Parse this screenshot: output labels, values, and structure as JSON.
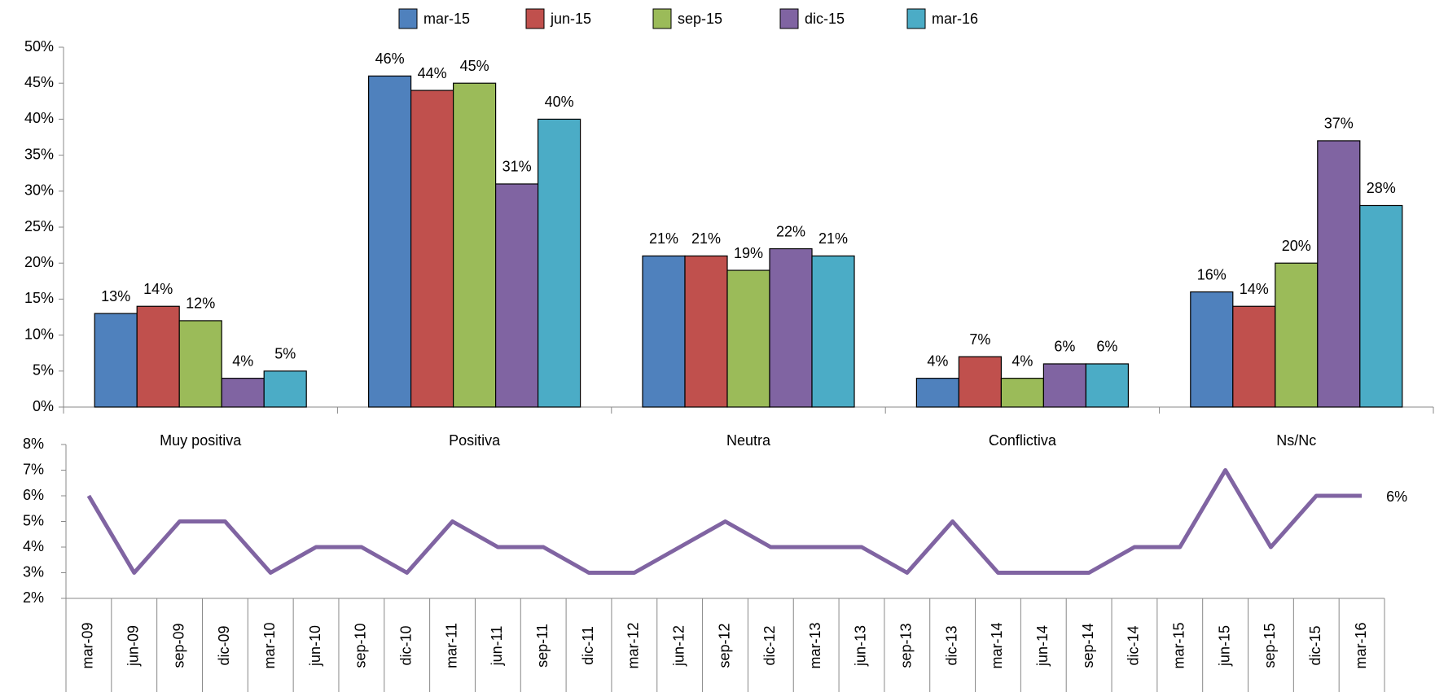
{
  "chart_data": [
    {
      "type": "bar",
      "categories": [
        "Muy positiva",
        "Positiva",
        "Neutra",
        "Conflictiva",
        "Ns/Nc"
      ],
      "series": [
        {
          "name": "mar-15",
          "color": "#4f81bd",
          "values": [
            13,
            46,
            21,
            4,
            16
          ],
          "value_labels": [
            "13%",
            "46%",
            "21%",
            "4%",
            "16%"
          ]
        },
        {
          "name": "jun-15",
          "color": "#c0504d",
          "values": [
            14,
            44,
            21,
            7,
            14
          ],
          "value_labels": [
            "14%",
            "44%",
            "21%",
            "7%",
            "14%"
          ]
        },
        {
          "name": "sep-15",
          "color": "#9bbb59",
          "values": [
            12,
            45,
            19,
            4,
            20
          ],
          "value_labels": [
            "12%",
            "45%",
            "19%",
            "4%",
            "20%"
          ]
        },
        {
          "name": "dic-15",
          "color": "#8064a2",
          "values": [
            4,
            31,
            22,
            6,
            37
          ],
          "value_labels": [
            "4%",
            "31%",
            "22%",
            "6%",
            "37%"
          ]
        },
        {
          "name": "mar-16",
          "color": "#4bacc6",
          "values": [
            5,
            40,
            21,
            6,
            28
          ],
          "value_labels": [
            "5%",
            "40%",
            "21%",
            "6%",
            "28%"
          ]
        }
      ],
      "ylim": [
        0,
        50
      ],
      "yticks": [
        {
          "value": 0,
          "label": "0%"
        },
        {
          "value": 5,
          "label": "5%"
        },
        {
          "value": 10,
          "label": "10%"
        },
        {
          "value": 15,
          "label": "15%"
        },
        {
          "value": 20,
          "label": "20%"
        },
        {
          "value": 25,
          "label": "25%"
        },
        {
          "value": 30,
          "label": "30%"
        },
        {
          "value": 35,
          "label": "35%"
        },
        {
          "value": 40,
          "label": "40%"
        },
        {
          "value": 45,
          "label": "45%"
        },
        {
          "value": 50,
          "label": "50%"
        }
      ],
      "legend": "top"
    },
    {
      "type": "line",
      "categories": [
        "mar-09",
        "jun-09",
        "sep-09",
        "dic-09",
        "mar-10",
        "jun-10",
        "sep-10",
        "dic-10",
        "mar-11",
        "jun-11",
        "sep-11",
        "dic-11",
        "mar-12",
        "jun-12",
        "sep-12",
        "dic-12",
        "mar-13",
        "jun-13",
        "sep-13",
        "dic-13",
        "mar-14",
        "jun-14",
        "sep-14",
        "dic-14",
        "mar-15",
        "jun-15",
        "sep-15",
        "dic-15",
        "mar-16"
      ],
      "values": [
        6,
        3,
        5,
        5,
        3,
        4,
        4,
        3,
        5,
        4,
        4,
        3,
        3,
        4,
        5,
        4,
        4,
        4,
        3,
        5,
        3,
        3,
        3,
        4,
        4,
        7,
        4,
        6,
        6
      ],
      "value_labels": [
        null,
        null,
        null,
        null,
        null,
        null,
        null,
        null,
        null,
        null,
        null,
        null,
        null,
        null,
        null,
        null,
        null,
        null,
        null,
        null,
        null,
        null,
        null,
        null,
        null,
        null,
        null,
        null,
        "6%"
      ],
      "color": "#8064a2",
      "ylim": [
        2,
        8
      ],
      "yticks": [
        {
          "value": 2,
          "label": "2%"
        },
        {
          "value": 3,
          "label": "3%"
        },
        {
          "value": 4,
          "label": "4%"
        },
        {
          "value": 5,
          "label": "5%"
        },
        {
          "value": 6,
          "label": "6%"
        },
        {
          "value": 7,
          "label": "7%"
        },
        {
          "value": 8,
          "label": "8%"
        }
      ]
    }
  ]
}
